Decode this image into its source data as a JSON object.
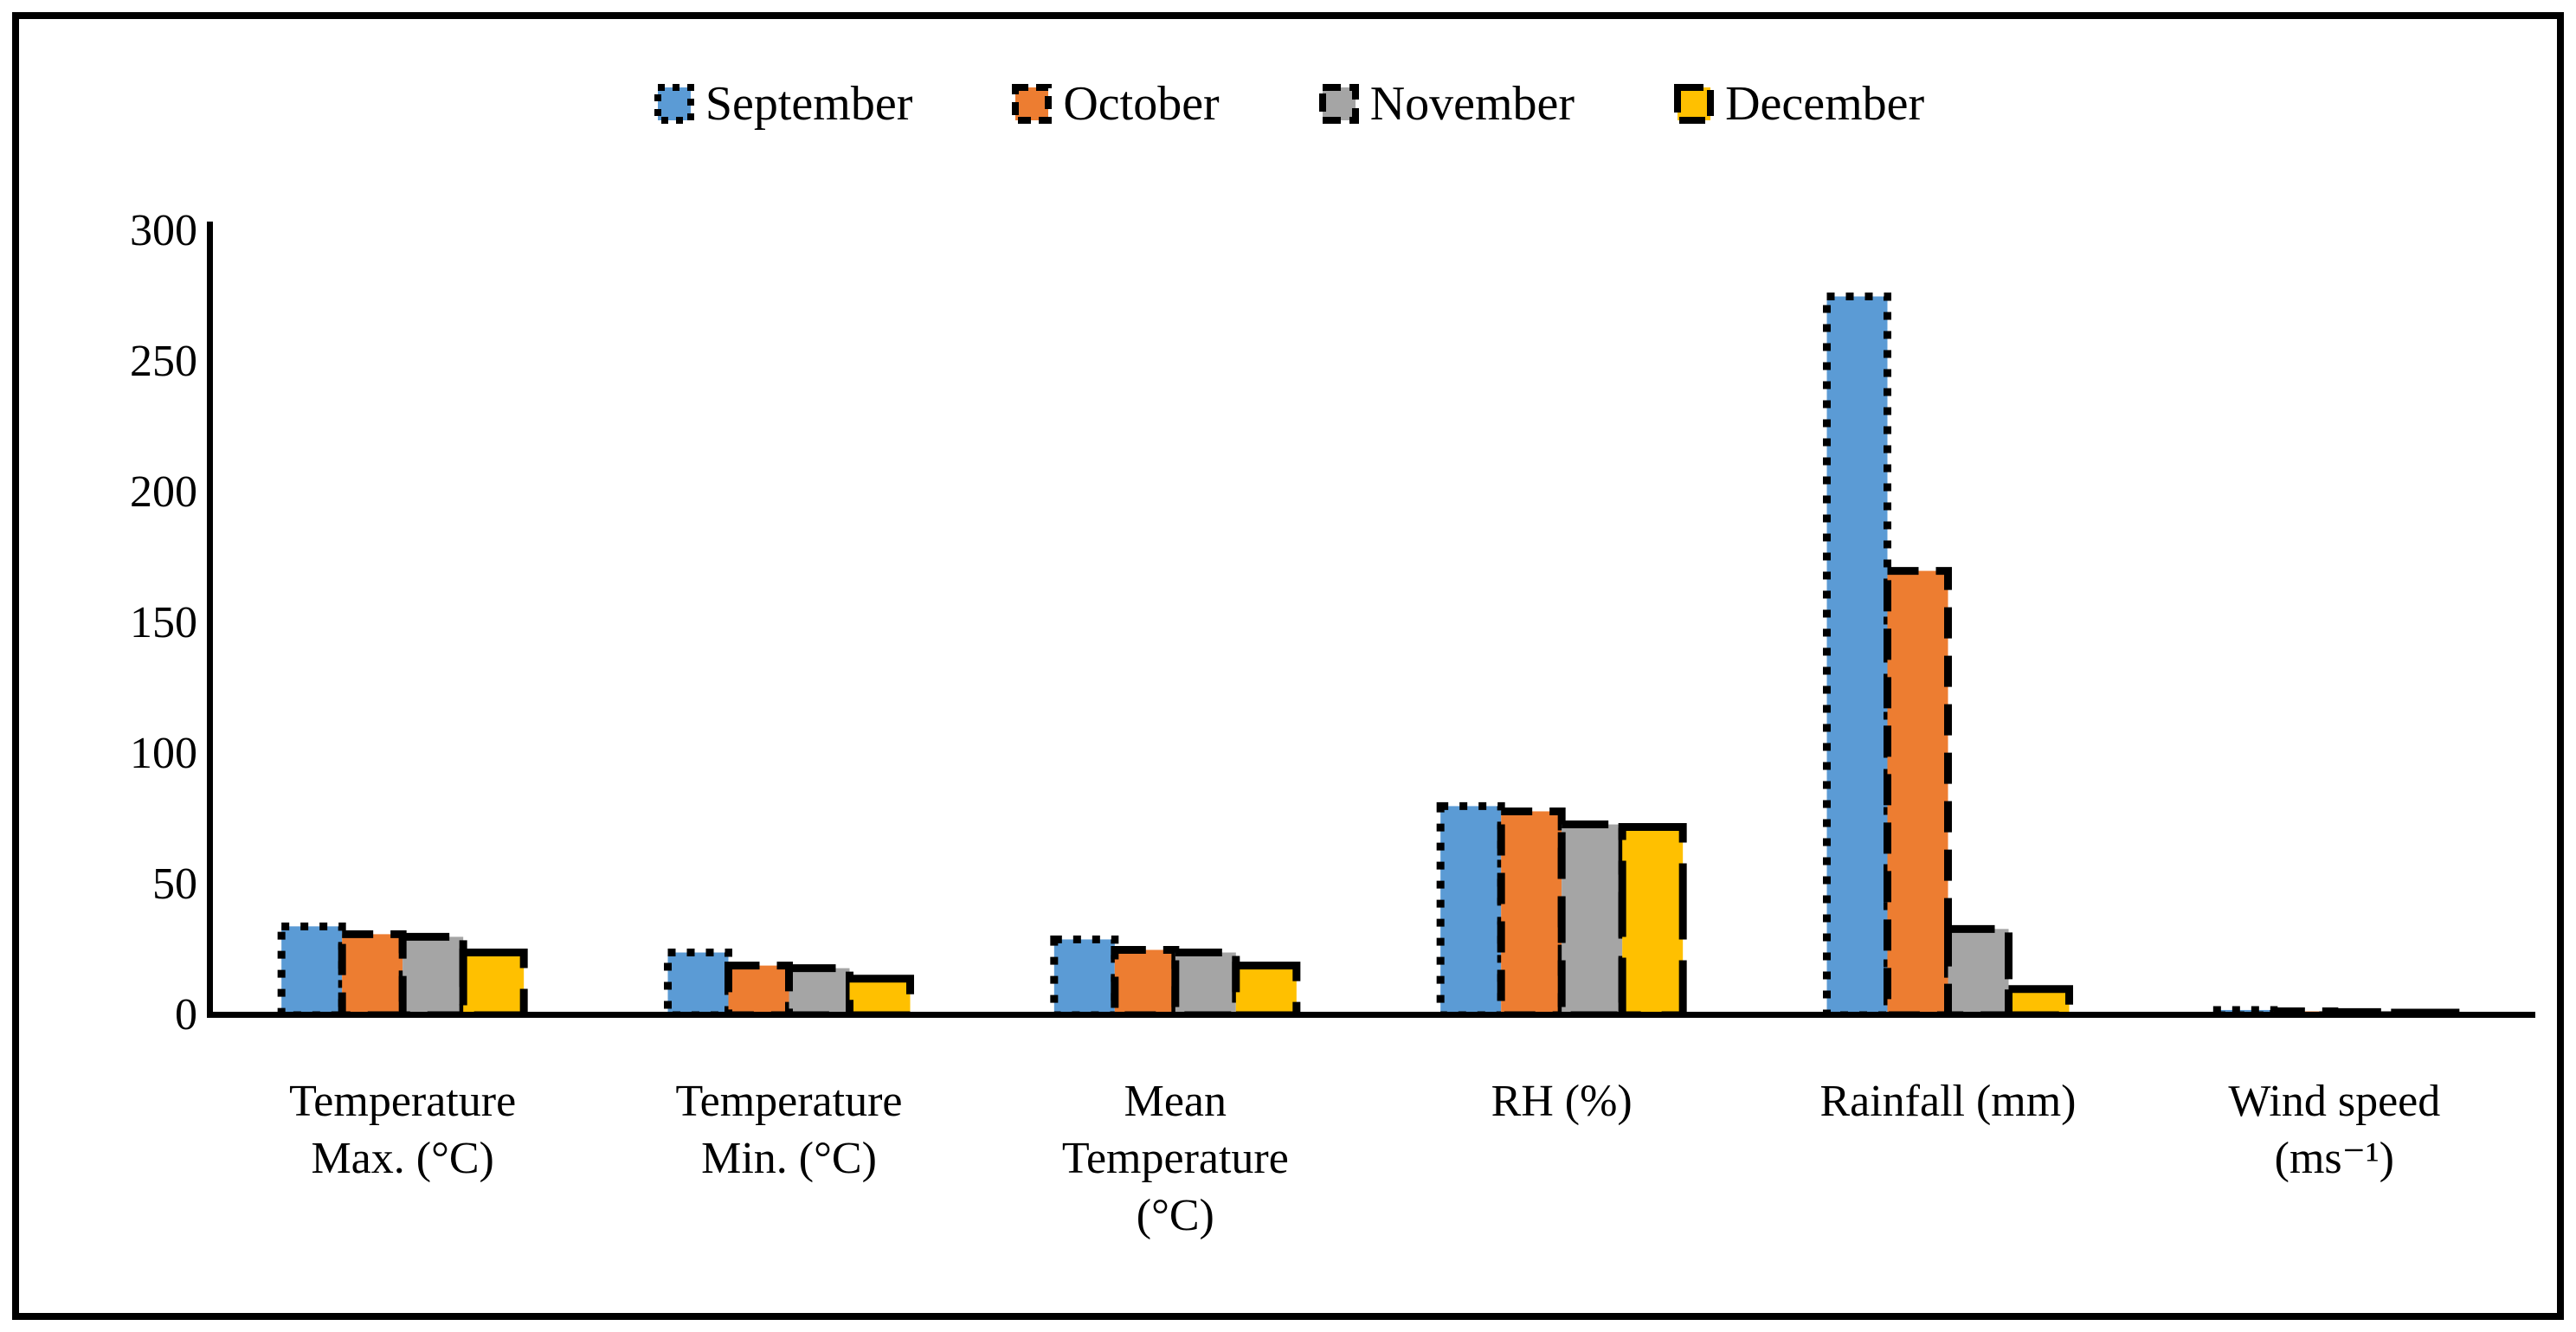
{
  "figure": {
    "background_color": "#ffffff",
    "border_color": "#000000"
  },
  "legend": {
    "position": "top-center",
    "marker_shape": "square"
  },
  "chart_data": {
    "type": "bar",
    "title": "",
    "xlabel": "",
    "ylabel": "",
    "ylim": [
      0,
      300
    ],
    "yticks": [
      0,
      50,
      100,
      150,
      200,
      250,
      300
    ],
    "grid": false,
    "legend_position": "top",
    "categories": [
      "Temperature\nMax. (°C)",
      "Temperature\nMin. (°C)",
      "Mean\nTemperature\n(°C)",
      "RH (%)",
      "Rainfall (mm)",
      "Wind speed\n(ms⁻¹)"
    ],
    "series": [
      {
        "name": "September",
        "color": "#5B9BD5",
        "border_color": "#000000",
        "border_style": "dotted",
        "values": [
          34,
          24,
          29,
          80,
          275,
          2
        ]
      },
      {
        "name": "October",
        "color": "#ED7D31",
        "border_color": "#000000",
        "border_style": "dash",
        "values": [
          31,
          19,
          25,
          78,
          170,
          1.5
        ]
      },
      {
        "name": "November",
        "color": "#A5A5A5",
        "border_color": "#000000",
        "border_style": "long-dash",
        "values": [
          30,
          18,
          24,
          73,
          33,
          1.2
        ]
      },
      {
        "name": "December",
        "color": "#FFC000",
        "border_color": "#000000",
        "border_style": "long-dash",
        "values": [
          24,
          14,
          19,
          72,
          10,
          1
        ]
      }
    ]
  }
}
